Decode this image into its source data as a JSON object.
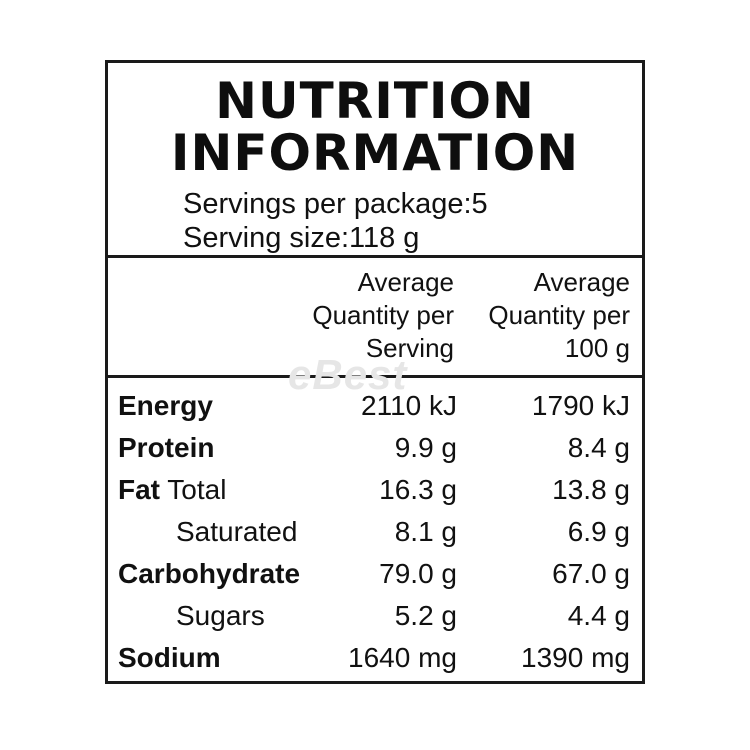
{
  "label": {
    "title_line1": "NUTRITION",
    "title_line2": "INFORMATION",
    "servings_per_package": "Servings per package:5",
    "serving_size": "Serving size:118 g",
    "column_headers": [
      [
        "Average",
        "Quantity per",
        "Serving"
      ],
      [
        "Average",
        "Quantity per",
        "100 g"
      ]
    ],
    "watermark": "eBest",
    "rows": [
      {
        "bold": "Energy",
        "rest": "",
        "per_serving": "2110 kJ",
        "per_100g": "1790 kJ",
        "indent": false
      },
      {
        "bold": "Protein",
        "rest": "",
        "per_serving": "9.9 g",
        "per_100g": "8.4 g",
        "indent": false
      },
      {
        "bold": "Fat",
        "rest": " Total",
        "per_serving": "16.3 g",
        "per_100g": "13.8 g",
        "indent": false
      },
      {
        "bold": "",
        "rest": "Saturated",
        "per_serving": "8.1 g",
        "per_100g": "6.9 g",
        "indent": true
      },
      {
        "bold": "Carbohydrate",
        "rest": "",
        "per_serving": "79.0 g",
        "per_100g": "67.0 g",
        "indent": false
      },
      {
        "bold": "",
        "rest": "Sugars",
        "per_serving": "5.2 g",
        "per_100g": "4.4 g",
        "indent": true
      },
      {
        "bold": "Sodium",
        "rest": "",
        "per_serving": "1640 mg",
        "per_100g": "1390 mg",
        "indent": false
      }
    ]
  }
}
